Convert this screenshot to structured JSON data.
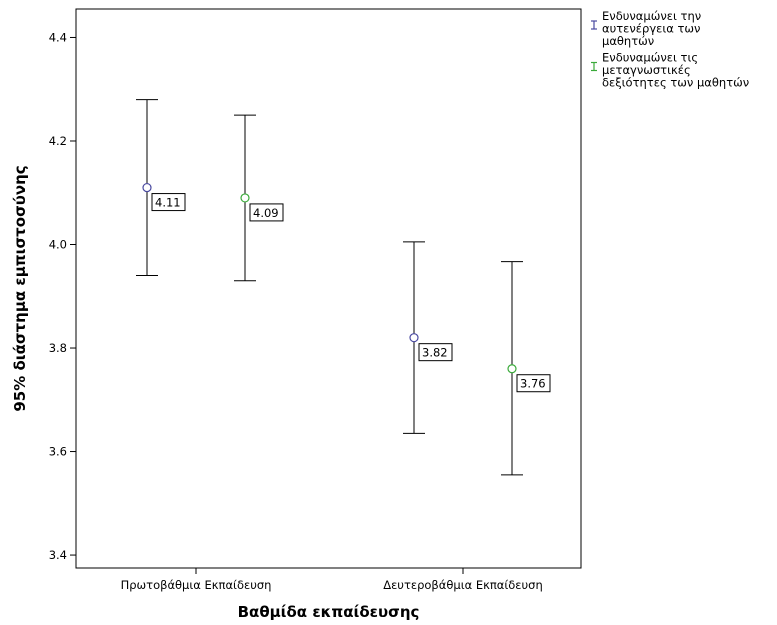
{
  "chart_data": {
    "type": "errorbar",
    "xlabel": "Βαθμίδα εκπαίδευσης",
    "ylabel": "95% διάστημα εμπιστοσύνης",
    "ylim": [
      3.375,
      4.455
    ],
    "yticks": [
      3.4,
      3.6,
      3.8,
      4.0,
      4.2,
      4.4
    ],
    "categories": [
      "Πρωτοβάθμια Εκπαίδευση",
      "Δευτεροβάθμια Εκπαίδευση"
    ],
    "legend_position": "top-right, outside plot",
    "series": [
      {
        "name": "Ενδυναμώνει την αυτενέργεια των μαθητών",
        "legend_lines": [
          "Ενδυναμώνει την",
          "αυτενέργεια των",
          "μαθητών"
        ],
        "color": "#4a4aa0",
        "means": [
          4.11,
          3.82
        ],
        "lower": [
          3.94,
          3.635
        ],
        "upper": [
          4.28,
          4.005
        ],
        "labels": [
          "4.11",
          "3.82"
        ]
      },
      {
        "name": "Ενδυναμώνει τις μεταγνωστικές δεξιότητες των μαθητών",
        "legend_lines": [
          "Ενδυναμώνει τις",
          "μεταγνωστικές",
          "δεξιότητες των μαθητών"
        ],
        "color": "#3aaa3a",
        "means": [
          4.09,
          3.76
        ],
        "lower": [
          3.93,
          3.555
        ],
        "upper": [
          4.25,
          3.967
        ],
        "labels": [
          "4.09",
          "3.76"
        ]
      }
    ]
  }
}
